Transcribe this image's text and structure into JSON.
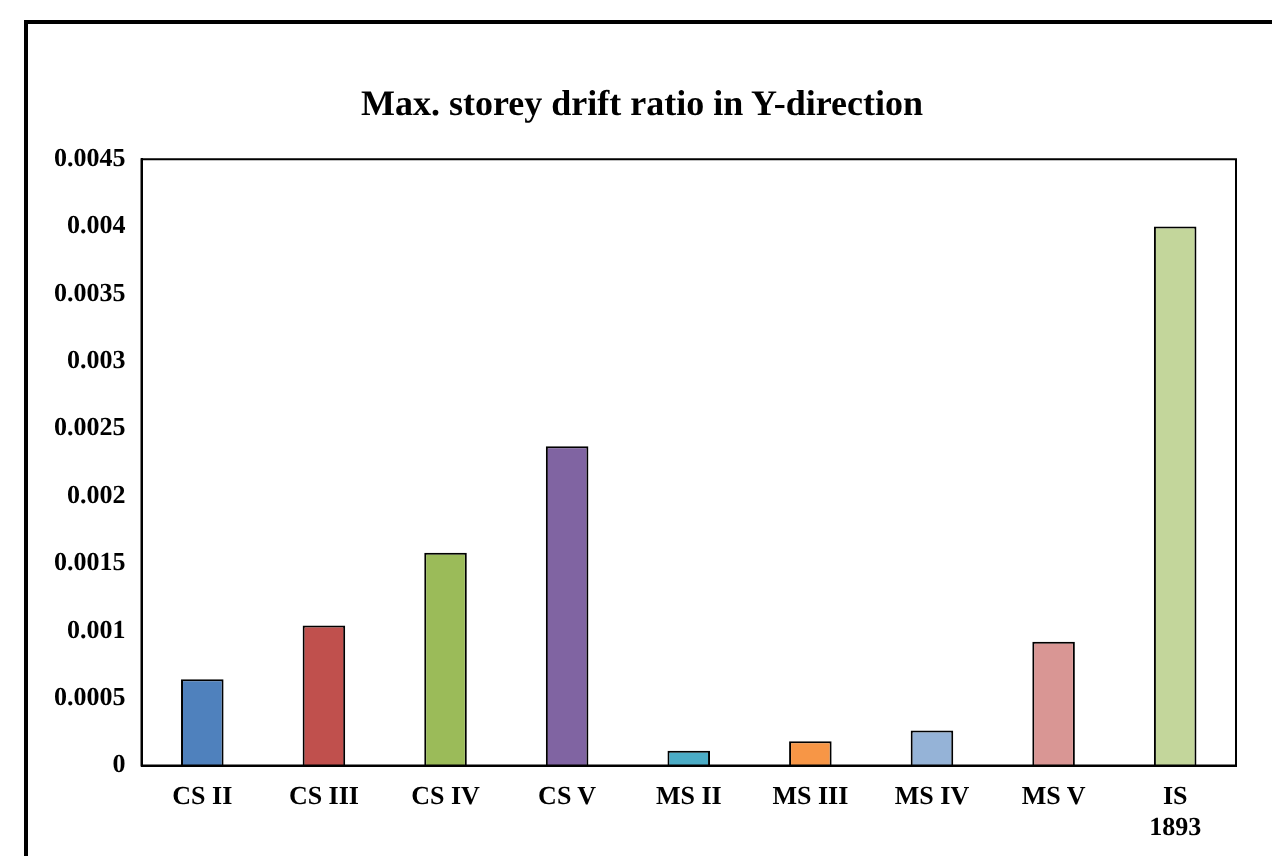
{
  "chart_data": {
    "type": "bar",
    "title": "Max. storey drift ratio in Y-direction",
    "categories": [
      "CS II",
      "CS III",
      "CS IV",
      "CS V",
      "MS II",
      "MS III",
      "MS IV",
      "MS V",
      "IS 1893"
    ],
    "values": [
      0.00064,
      0.00104,
      0.00158,
      0.00237,
      0.00011,
      0.00018,
      0.00026,
      0.00092,
      0.004
    ],
    "colors": [
      "#4f81bd",
      "#c0504d",
      "#9bbb59",
      "#8064a2",
      "#4bacc6",
      "#f79646",
      "#95b3d7",
      "#d99694",
      "#c3d69b"
    ],
    "ylim": [
      0,
      0.0045
    ],
    "yticks": [
      0,
      0.0005,
      0.001,
      0.0015,
      0.002,
      0.0025,
      0.003,
      0.0035,
      0.004,
      0.0045
    ],
    "grid": false,
    "legend": false
  }
}
